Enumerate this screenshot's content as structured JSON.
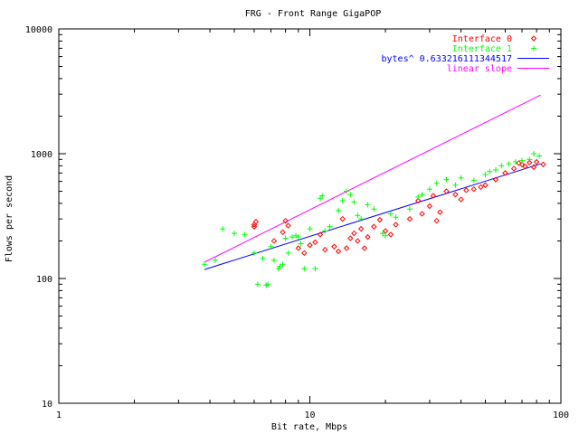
{
  "chart_data": {
    "type": "scatter",
    "title": "FRG - Front Range GigaPOP",
    "xlabel": "Bit rate, Mbps",
    "ylabel": "Flows per second",
    "x_scale": "log",
    "y_scale": "log",
    "xlim": [
      1,
      100
    ],
    "ylim": [
      10,
      10000
    ],
    "x_ticks": [
      1,
      10,
      100
    ],
    "x_tick_labels": [
      "1",
      "10",
      "100"
    ],
    "y_ticks": [
      10,
      100,
      1000,
      10000
    ],
    "y_tick_labels": [
      "10",
      "100",
      "1000",
      "10000"
    ],
    "grid": false,
    "legend_position": "top-right",
    "series": [
      {
        "name": "Interface 0",
        "kind": "points",
        "marker": "diamond",
        "color": "#ff0000",
        "points": [
          [
            6.0,
            270
          ],
          [
            6.1,
            285
          ],
          [
            6.0,
            260
          ],
          [
            7.2,
            200
          ],
          [
            7.8,
            235
          ],
          [
            8.0,
            290
          ],
          [
            8.2,
            265
          ],
          [
            9.0,
            175
          ],
          [
            9.5,
            160
          ],
          [
            10.0,
            185
          ],
          [
            10.5,
            195
          ],
          [
            11.0,
            225
          ],
          [
            11.5,
            170
          ],
          [
            12.5,
            180
          ],
          [
            13.0,
            165
          ],
          [
            13.5,
            300
          ],
          [
            14.0,
            175
          ],
          [
            14.5,
            210
          ],
          [
            15.0,
            230
          ],
          [
            15.5,
            200
          ],
          [
            16.0,
            250
          ],
          [
            16.5,
            175
          ],
          [
            17.0,
            215
          ],
          [
            18.0,
            260
          ],
          [
            19.0,
            295
          ],
          [
            20.0,
            240
          ],
          [
            21.0,
            225
          ],
          [
            22.0,
            270
          ],
          [
            25.0,
            300
          ],
          [
            27.0,
            420
          ],
          [
            28.0,
            330
          ],
          [
            30.0,
            380
          ],
          [
            31.0,
            460
          ],
          [
            32.0,
            290
          ],
          [
            33.0,
            340
          ],
          [
            35.0,
            500
          ],
          [
            38.0,
            470
          ],
          [
            40.0,
            430
          ],
          [
            42.0,
            510
          ],
          [
            45.0,
            520
          ],
          [
            48.0,
            540
          ],
          [
            50.0,
            560
          ],
          [
            55.0,
            620
          ],
          [
            60.0,
            700
          ],
          [
            65.0,
            760
          ],
          [
            68.0,
            840
          ],
          [
            70.0,
            820
          ],
          [
            72.0,
            790
          ],
          [
            75.0,
            850
          ],
          [
            78.0,
            780
          ],
          [
            80.0,
            860
          ],
          [
            85.0,
            820
          ]
        ]
      },
      {
        "name": "Interface 1",
        "kind": "points",
        "marker": "plus",
        "color": "#00ff00",
        "points": [
          [
            3.8,
            130
          ],
          [
            4.2,
            140
          ],
          [
            4.5,
            250
          ],
          [
            5.0,
            230
          ],
          [
            5.5,
            225
          ],
          [
            6.0,
            160
          ],
          [
            6.2,
            90
          ],
          [
            6.5,
            145
          ],
          [
            6.7,
            88
          ],
          [
            6.8,
            90
          ],
          [
            7.0,
            180
          ],
          [
            7.2,
            140
          ],
          [
            7.5,
            120
          ],
          [
            7.6,
            125
          ],
          [
            7.8,
            130
          ],
          [
            8.0,
            210
          ],
          [
            8.2,
            160
          ],
          [
            8.5,
            215
          ],
          [
            8.8,
            220
          ],
          [
            9.0,
            215
          ],
          [
            9.2,
            190
          ],
          [
            9.5,
            120
          ],
          [
            10.0,
            250
          ],
          [
            10.5,
            120
          ],
          [
            11.0,
            440
          ],
          [
            11.2,
            460
          ],
          [
            11.5,
            240
          ],
          [
            12.0,
            260
          ],
          [
            13.0,
            350
          ],
          [
            13.5,
            420
          ],
          [
            14.0,
            500
          ],
          [
            14.5,
            470
          ],
          [
            15.0,
            410
          ],
          [
            15.5,
            320
          ],
          [
            16.0,
            300
          ],
          [
            17.0,
            390
          ],
          [
            18.0,
            360
          ],
          [
            19.5,
            230
          ],
          [
            20.0,
            220
          ],
          [
            21.0,
            330
          ],
          [
            22.0,
            310
          ],
          [
            25.0,
            360
          ],
          [
            27.0,
            450
          ],
          [
            28.0,
            470
          ],
          [
            30.0,
            520
          ],
          [
            32.0,
            580
          ],
          [
            35.0,
            620
          ],
          [
            38.0,
            560
          ],
          [
            40.0,
            640
          ],
          [
            45.0,
            610
          ],
          [
            50.0,
            680
          ],
          [
            52.0,
            720
          ],
          [
            55.0,
            740
          ],
          [
            58.0,
            800
          ],
          [
            62.0,
            830
          ],
          [
            66.0,
            860
          ],
          [
            70.0,
            880
          ],
          [
            75.0,
            900
          ],
          [
            78.0,
            1000
          ],
          [
            82.0,
            960
          ]
        ]
      },
      {
        "name": "bytes^ 0.633216111344517",
        "kind": "line",
        "color": "#0000ff",
        "points": [
          [
            3.8,
            118
          ],
          [
            83.0,
            830
          ]
        ]
      },
      {
        "name": "linear slope",
        "kind": "line",
        "color": "#ff00ff",
        "points": [
          [
            3.8,
            135
          ],
          [
            83.0,
            2950
          ]
        ]
      }
    ]
  }
}
